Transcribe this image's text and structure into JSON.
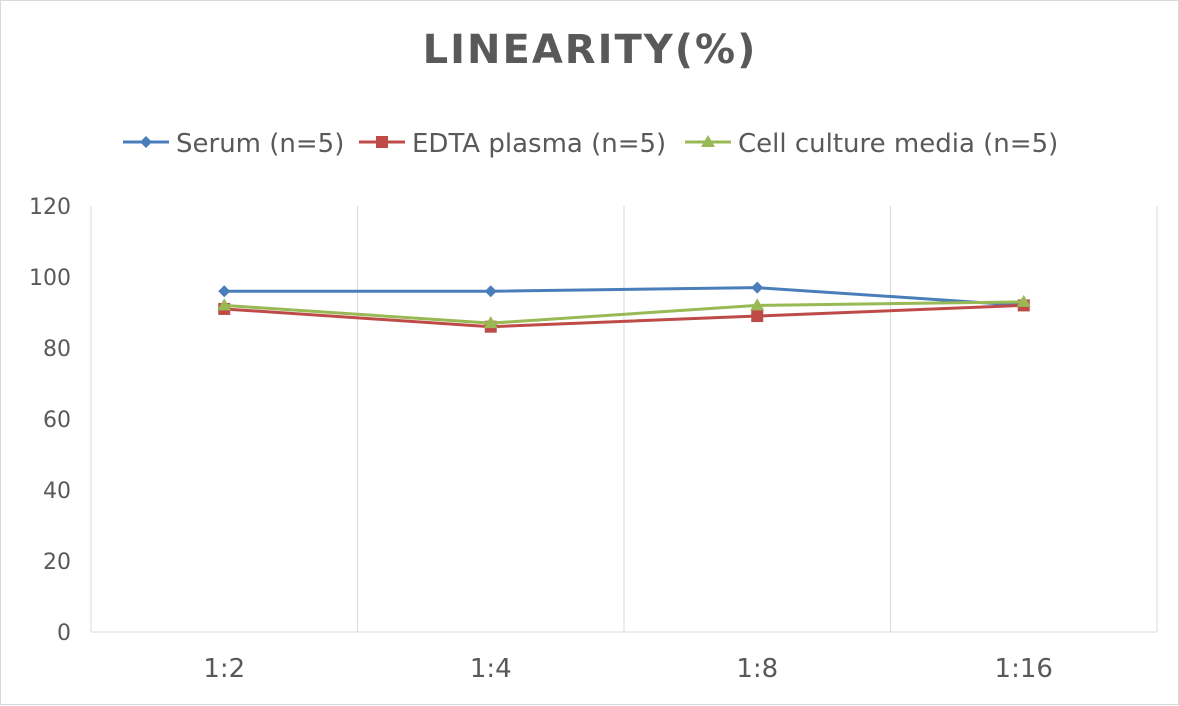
{
  "chart_data": {
    "type": "line",
    "title": "LINEARITY(%)",
    "categories": [
      "1:2",
      "1:4",
      "1:8",
      "1:16"
    ],
    "ylim": [
      0,
      120
    ],
    "yticks": [
      0,
      20,
      40,
      60,
      80,
      100,
      120
    ],
    "grid": "vertical",
    "legend": "top",
    "series": [
      {
        "name": "Serum (n=5)",
        "color": "#4a7ebb",
        "marker": "diamond",
        "values": [
          96,
          96,
          97,
          92
        ]
      },
      {
        "name": "EDTA plasma (n=5)",
        "color": "#be4b48",
        "marker": "square",
        "values": [
          91,
          86,
          89,
          92
        ]
      },
      {
        "name": "Cell culture media (n=5)",
        "color": "#98b954",
        "marker": "triangle",
        "values": [
          92,
          87,
          92,
          93
        ]
      }
    ]
  }
}
